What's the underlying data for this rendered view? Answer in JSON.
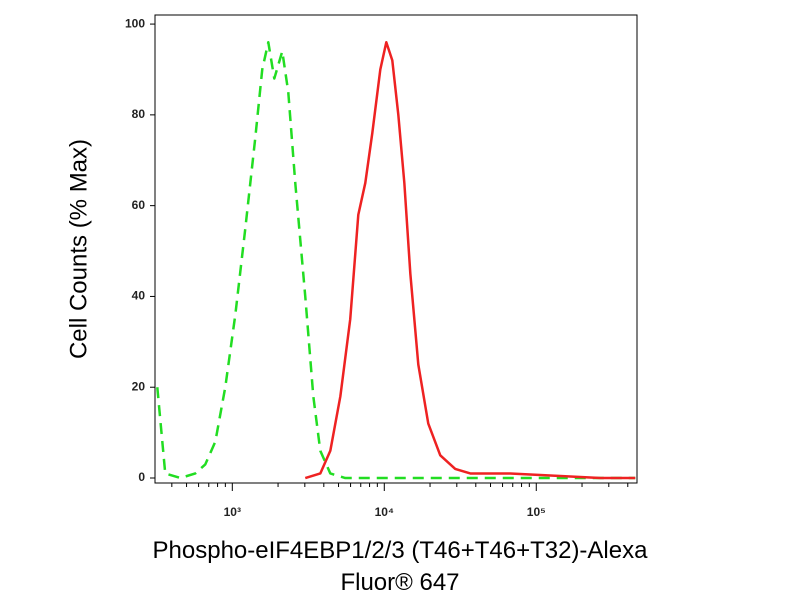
{
  "chart_data": {
    "type": "line",
    "y_label": "Cell Counts (% Max)",
    "x_label": [
      "Phospho-eIF4EBP1/2/3 (T46+T46+T32)-Alexa",
      "Fluor® 647"
    ],
    "xscale": "log",
    "xlim": [
      310,
      460000
    ],
    "ylim": [
      -1.1,
      102
    ],
    "xticks": [
      {
        "value": 1000,
        "label": "10³"
      },
      {
        "value": 10000,
        "label": "10⁴"
      },
      {
        "value": 100000,
        "label": "10⁵"
      }
    ],
    "xticks_minor": [
      400,
      500,
      600,
      700,
      800,
      900,
      2000,
      3000,
      4000,
      5000,
      6000,
      7000,
      8000,
      9000,
      20000,
      30000,
      40000,
      50000,
      60000,
      70000,
      80000,
      90000,
      200000,
      300000,
      400000
    ],
    "yticks": [
      0,
      20,
      40,
      60,
      80,
      100
    ],
    "series": [
      {
        "color": "#22dd22",
        "dash": true,
        "x": [
          321,
          362,
          455,
          571,
          664,
          773,
          899,
          1047,
          1218,
          1417,
          1574,
          1725,
          1889,
          2132,
          2335,
          2596,
          3020,
          3412,
          3793,
          4415,
          5539,
          12730,
          57940,
          448000
        ],
        "values": [
          20,
          1,
          0,
          1,
          3,
          8,
          20,
          36,
          55,
          75,
          90,
          96,
          88,
          94,
          85,
          65,
          40,
          18,
          6,
          1,
          0,
          0,
          0,
          0
        ]
      },
      {
        "color": "#ee2222",
        "dash": false,
        "x": [
          3020,
          3793,
          4415,
          5140,
          5970,
          6745,
          7500,
          8340,
          9415,
          10310,
          11290,
          12370,
          13550,
          14840,
          16740,
          19470,
          23350,
          29300,
          36800,
          67400,
          263500,
          448000
        ],
        "values": [
          0,
          1,
          6,
          18,
          35,
          58,
          65,
          76,
          90,
          96,
          92,
          80,
          65,
          45,
          25,
          12,
          5,
          2,
          1,
          1,
          0,
          0
        ]
      }
    ]
  }
}
